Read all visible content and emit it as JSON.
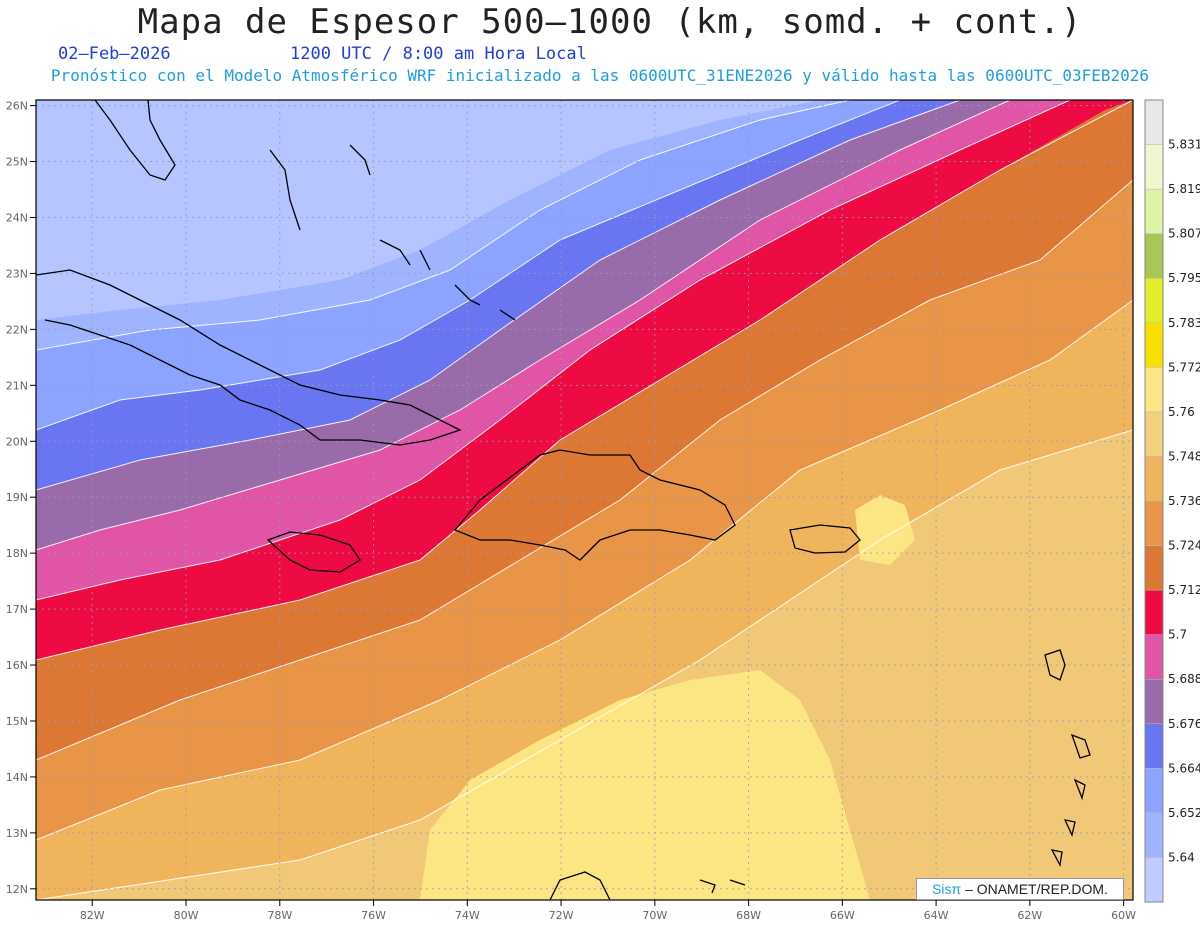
{
  "header": {
    "title": "Mapa de Espesor 500–1000 (km, somd. + cont.)",
    "date": "02–Feb–2026",
    "time": "1200 UTC / 8:00 am Hora Local",
    "subtitle": "Pronóstico con el Modelo Atmosférico WRF inicializado a las 0600UTC_31ENE2026 y válido hasta las  0600UTC_03FEB2026"
  },
  "map": {
    "lon_range": [
      -83.2,
      -59.8
    ],
    "lat_range": [
      11.8,
      26.1
    ],
    "x_ticks": [
      "82W",
      "80W",
      "78W",
      "76W",
      "74W",
      "72W",
      "70W",
      "68W",
      "66W",
      "64W",
      "62W",
      "60W"
    ],
    "y_ticks": [
      "12N",
      "13N",
      "14N",
      "15N",
      "16N",
      "17N",
      "18N",
      "19N",
      "20N",
      "21N",
      "22N",
      "23N",
      "24N",
      "25N",
      "26N"
    ],
    "grid": true,
    "colorbar": {
      "labels": [
        "5.64",
        "5.652",
        "5.664",
        "5.676",
        "5.688",
        "5.7",
        "5.712",
        "5.724",
        "5.736",
        "5.748",
        "5.76",
        "5.772",
        "5.783",
        "5.795",
        "5.807",
        "5.819",
        "5.831"
      ],
      "colors": [
        "#c2cbff",
        "#a0b3ff",
        "#8ca4ff",
        "#6a75f2",
        "#9a6bab",
        "#e055a5",
        "#ee0a43",
        "#dc7734",
        "#e89548",
        "#f0b45d",
        "#f3d07a",
        "#fbe683",
        "#f8e100",
        "#e3ee2a",
        "#a8c855",
        "#dff3a6",
        "#f0f7d0",
        "#e8e8e8"
      ]
    }
  },
  "credit": {
    "brand": "Sisπ",
    "text": " –  ONAMET/REP.DOM."
  }
}
